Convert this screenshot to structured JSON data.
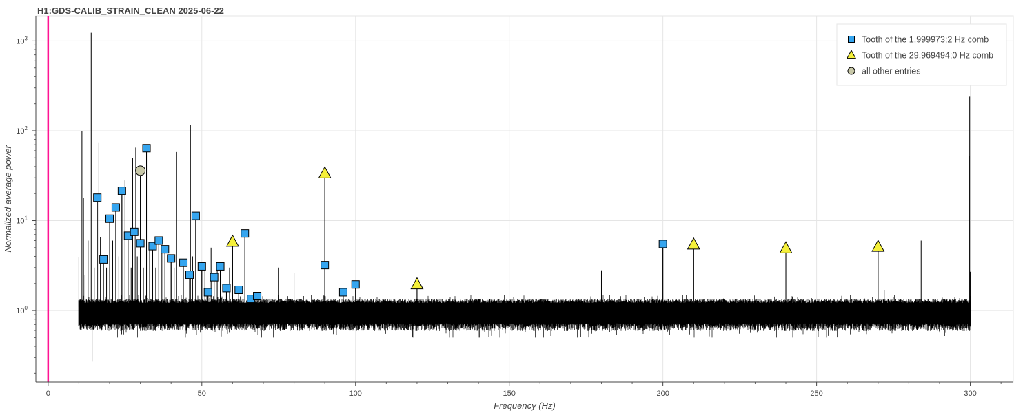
{
  "chart_data": {
    "type": "scatter",
    "title": "H1:GDS-CALIB_STRAIN_CLEAN 2025-06-22",
    "xlabel": "Frequency (Hz)",
    "ylabel": "Normalized average power",
    "xlim": [
      -4,
      314
    ],
    "ylim": [
      0.16,
      1900
    ],
    "yscale": "log",
    "x_ticks": [
      0,
      50,
      100,
      150,
      200,
      250,
      300
    ],
    "y_ticks": [
      {
        "value": 1,
        "label": "10",
        "exp": "0"
      },
      {
        "value": 10,
        "label": "10",
        "exp": "1"
      },
      {
        "value": 100,
        "label": "10",
        "exp": "2"
      },
      {
        "value": 1000,
        "label": "10",
        "exp": "3"
      }
    ],
    "grid": true,
    "legend_position": "top-right",
    "vertical_marker": {
      "x": 0,
      "color": "#ff1493"
    },
    "spectrum": {
      "color": "#000000",
      "fmin": 10,
      "fmax": 300,
      "noise_low": 0.72,
      "noise_high": 1.35,
      "peaks": [
        [
          10,
          3.9
        ],
        [
          11,
          100
        ],
        [
          11.5,
          18
        ],
        [
          12,
          2.5
        ],
        [
          13,
          6
        ],
        [
          14,
          1230
        ],
        [
          14.3,
          0.27
        ],
        [
          15,
          3
        ],
        [
          16,
          18
        ],
        [
          16.5,
          73
        ],
        [
          17,
          6.5
        ],
        [
          18,
          3.7
        ],
        [
          19,
          3
        ],
        [
          20,
          10.5
        ],
        [
          21,
          6
        ],
        [
          22,
          14
        ],
        [
          23,
          4
        ],
        [
          24,
          21.5
        ],
        [
          25,
          28
        ],
        [
          26,
          6.8
        ],
        [
          27,
          3
        ],
        [
          27.5,
          50
        ],
        [
          28,
          7.5
        ],
        [
          28.5,
          65
        ],
        [
          29,
          4
        ],
        [
          30,
          37
        ],
        [
          31,
          3
        ],
        [
          32,
          64
        ],
        [
          33,
          5
        ],
        [
          34,
          5.2
        ],
        [
          35,
          3
        ],
        [
          36,
          6
        ],
        [
          37,
          4.5
        ],
        [
          38,
          4.8
        ],
        [
          40,
          3.8
        ],
        [
          41,
          3
        ],
        [
          41.8,
          58
        ],
        [
          44,
          3.4
        ],
        [
          46,
          2.5
        ],
        [
          46.3,
          116
        ],
        [
          47,
          4
        ],
        [
          48,
          11.3
        ],
        [
          50,
          3.1
        ],
        [
          51,
          3
        ],
        [
          52,
          1.6
        ],
        [
          53,
          5
        ],
        [
          54,
          2.3
        ],
        [
          55,
          3
        ],
        [
          56,
          3.1
        ],
        [
          58,
          1.8
        ],
        [
          59,
          3
        ],
        [
          60,
          5.5
        ],
        [
          62,
          1.7
        ],
        [
          64,
          7.2
        ],
        [
          66,
          1.35
        ],
        [
          68,
          1.45
        ],
        [
          75,
          3.0
        ],
        [
          80,
          2.6
        ],
        [
          90,
          33
        ],
        [
          96,
          1.6
        ],
        [
          100,
          1.95
        ],
        [
          106,
          3.7
        ],
        [
          120,
          1.95
        ],
        [
          180,
          2.8
        ],
        [
          200,
          5.5
        ],
        [
          210,
          5.3
        ],
        [
          240,
          4.8
        ],
        [
          270,
          5.0
        ],
        [
          272,
          1.7
        ],
        [
          284,
          6
        ],
        [
          299.6,
          52
        ],
        [
          299.8,
          240
        ],
        [
          300,
          2.7
        ]
      ]
    },
    "series": [
      {
        "name": "Tooth of the 1.999973;2 Hz comb",
        "marker": "square",
        "color": "#35a5ef",
        "points": [
          [
            16,
            18
          ],
          [
            18,
            3.7
          ],
          [
            20,
            10.5
          ],
          [
            22,
            14
          ],
          [
            24,
            21.5
          ],
          [
            26,
            6.8
          ],
          [
            28,
            7.5
          ],
          [
            30,
            5.6
          ],
          [
            32,
            64
          ],
          [
            34,
            5.2
          ],
          [
            36,
            6
          ],
          [
            38,
            4.8
          ],
          [
            40,
            3.8
          ],
          [
            44,
            3.4
          ],
          [
            46,
            2.5
          ],
          [
            48,
            11.3
          ],
          [
            50,
            3.1
          ],
          [
            52,
            1.6
          ],
          [
            54,
            2.35
          ],
          [
            56,
            3.1
          ],
          [
            58,
            1.78
          ],
          [
            62,
            1.7
          ],
          [
            64,
            7.2
          ],
          [
            66,
            1.35
          ],
          [
            68,
            1.45
          ],
          [
            90,
            3.2
          ],
          [
            96,
            1.6
          ],
          [
            100,
            1.95
          ],
          [
            200,
            5.5
          ]
        ]
      },
      {
        "name": "Tooth of the 29.969494;0 Hz comb",
        "marker": "triangle",
        "color": "#f5f03a",
        "points": [
          [
            60,
            5.8
          ],
          [
            90,
            33.5
          ],
          [
            120,
            1.95
          ],
          [
            210,
            5.4
          ],
          [
            240,
            4.9
          ],
          [
            270,
            5.1
          ]
        ]
      },
      {
        "name": "all other entries",
        "marker": "circle",
        "color": "#c8c8a8",
        "points": [
          [
            30,
            36
          ]
        ]
      }
    ]
  }
}
